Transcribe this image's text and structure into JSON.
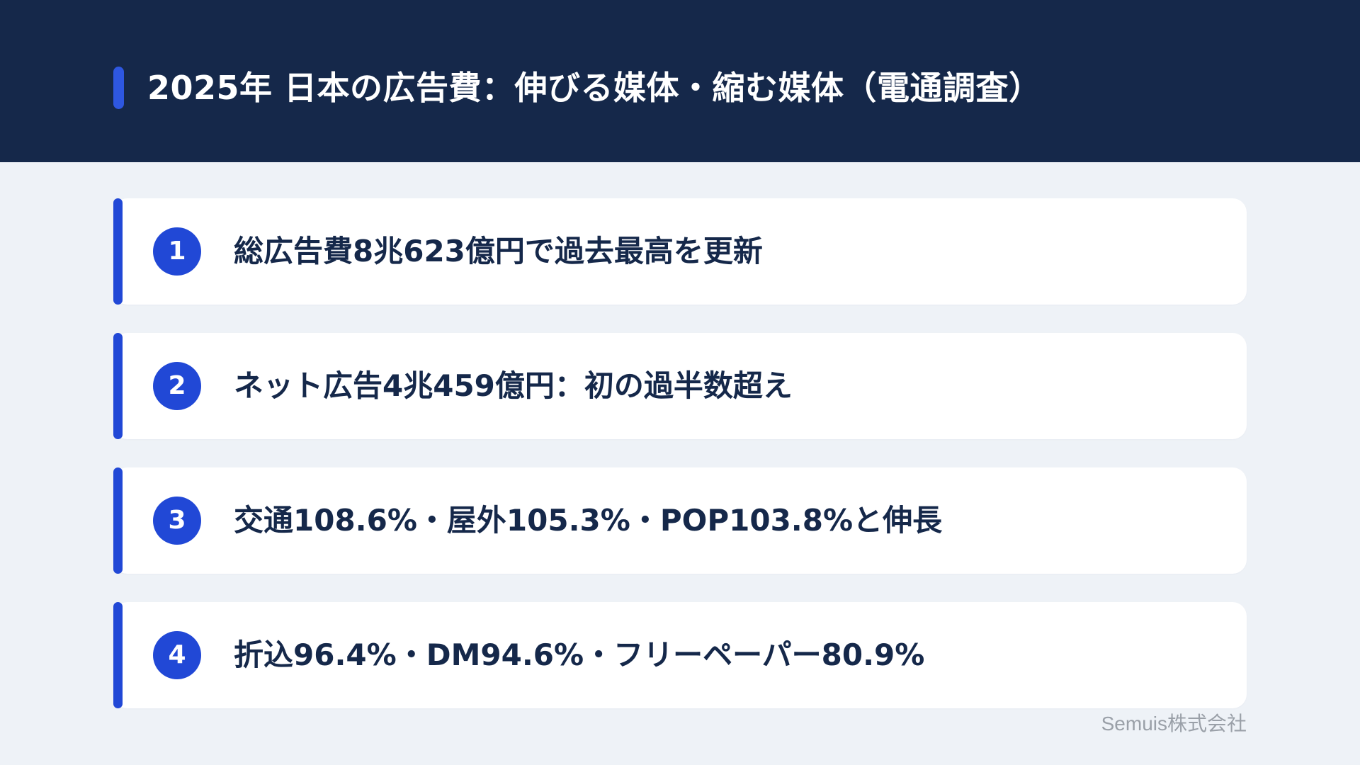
{
  "header": {
    "title": "2025年 日本の広告費：伸びる媒体・縮む媒体（電通調査）"
  },
  "items": [
    {
      "number": "1",
      "text": "総広告費8兆623億円で過去最高を更新"
    },
    {
      "number": "2",
      "text": "ネット広告4兆459億円：初の過半数超え"
    },
    {
      "number": "3",
      "text": "交通108.6%・屋外105.3%・POP103.8%と伸長"
    },
    {
      "number": "4",
      "text": "折込96.4%・DM94.6%・フリーペーパー80.9%"
    }
  ],
  "footer": {
    "company": "Semuis株式会社"
  },
  "colors": {
    "header_bg": "#15284a",
    "accent": "#2148d6",
    "page_bg": "#eef2f7",
    "text": "#15284a"
  }
}
